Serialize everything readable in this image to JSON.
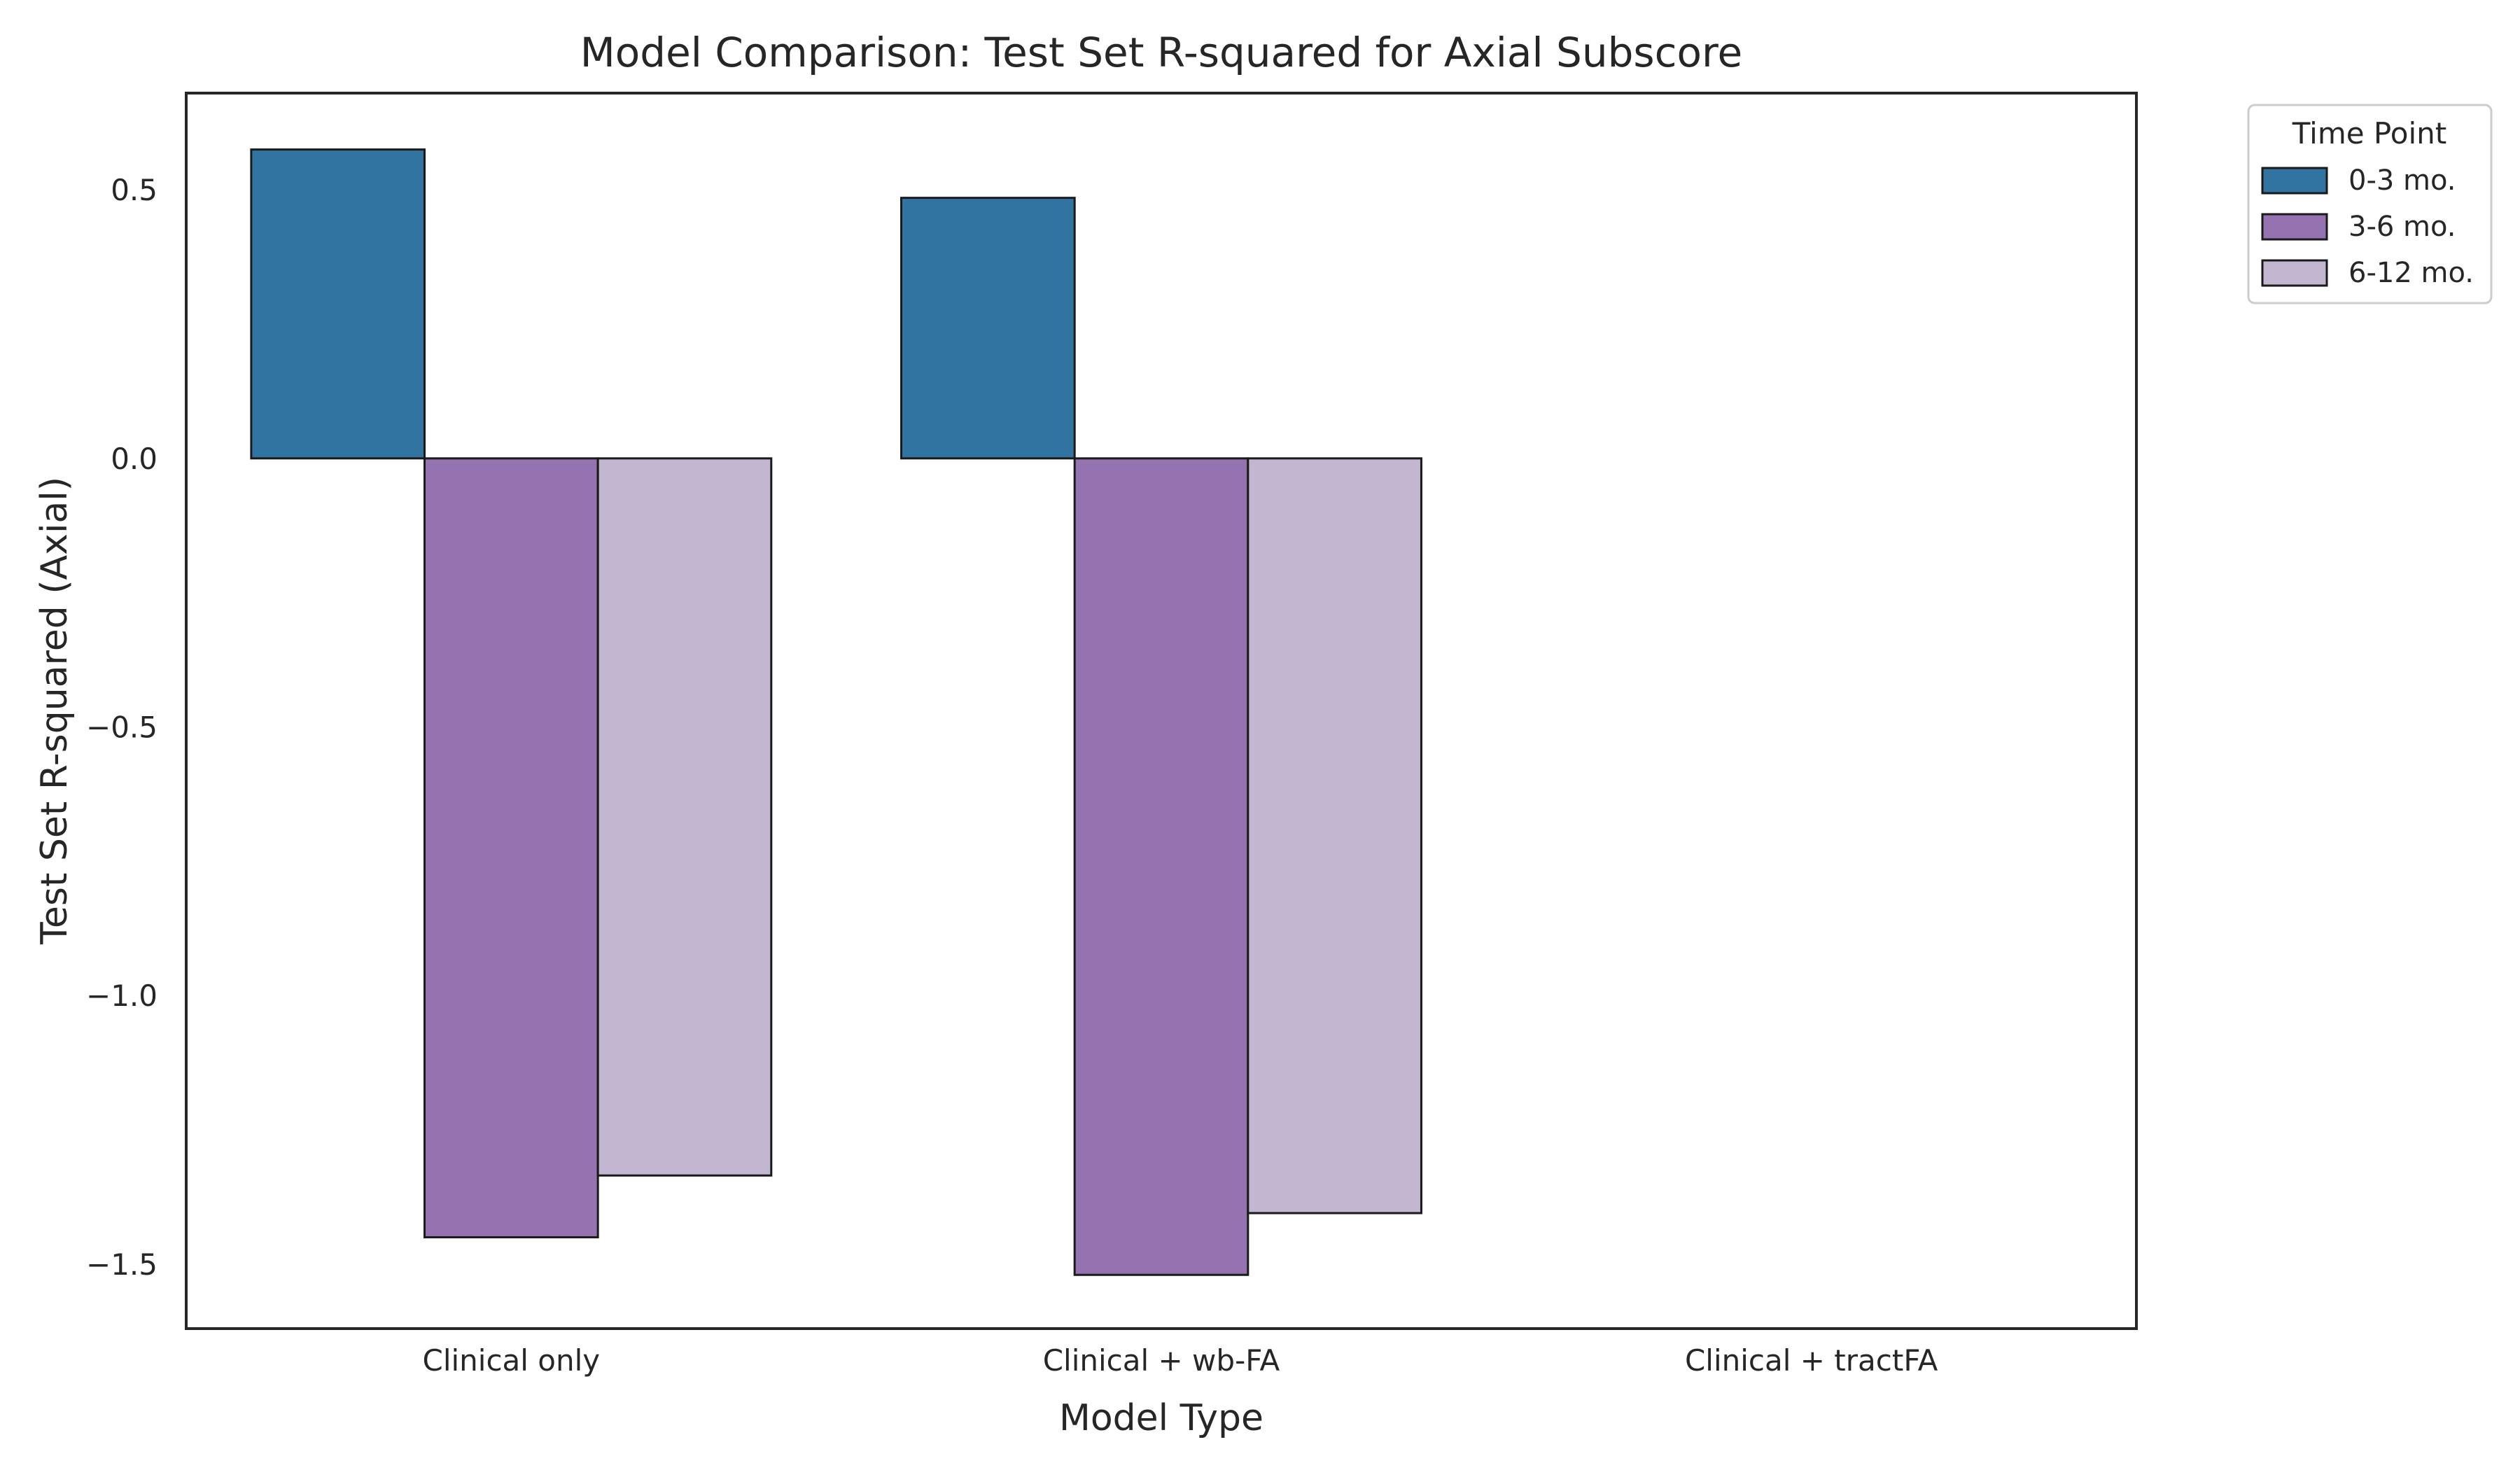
{
  "chart_data": {
    "type": "bar",
    "title": "Model Comparison: Test Set R-squared for Axial Subscore",
    "xlabel": "Model Type",
    "ylabel": "Test Set R-squared (Axial)",
    "categories": [
      "Clinical only",
      "Clinical + wb-FA",
      "Clinical + tractFA"
    ],
    "ylim": [
      -1.62,
      0.68
    ],
    "yticks": [
      0.5,
      0.0,
      -0.5,
      -1.0,
      -1.5
    ],
    "ytick_labels": [
      "0.5",
      "0.0",
      "−0.5",
      "−1.0",
      "−1.5"
    ],
    "grid": false,
    "legend": {
      "title": "Time Point",
      "placement": "outside-top-right"
    },
    "series": [
      {
        "name": "0-3 mo.",
        "color": "#3274a1",
        "values": [
          0.575,
          0.485,
          null
        ]
      },
      {
        "name": "3-6 mo.",
        "color": "#9473b0",
        "values": [
          -1.45,
          -1.52,
          null
        ]
      },
      {
        "name": "6-12 mo.",
        "color": "#c3b6d1",
        "values": [
          -1.335,
          -1.405,
          null
        ]
      }
    ]
  }
}
